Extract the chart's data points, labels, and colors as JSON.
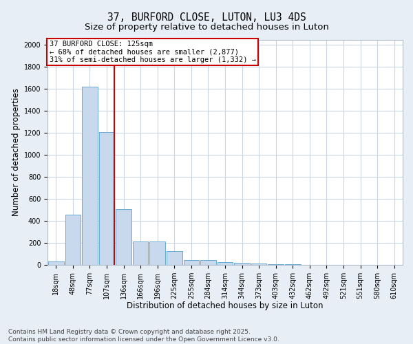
{
  "title": "37, BURFORD CLOSE, LUTON, LU3 4DS",
  "subtitle": "Size of property relative to detached houses in Luton",
  "xlabel": "Distribution of detached houses by size in Luton",
  "ylabel": "Number of detached properties",
  "categories": [
    "18sqm",
    "48sqm",
    "77sqm",
    "107sqm",
    "136sqm",
    "166sqm",
    "196sqm",
    "225sqm",
    "255sqm",
    "284sqm",
    "314sqm",
    "344sqm",
    "373sqm",
    "403sqm",
    "432sqm",
    "462sqm",
    "492sqm",
    "521sqm",
    "551sqm",
    "580sqm",
    "610sqm"
  ],
  "values": [
    30,
    460,
    1620,
    1210,
    510,
    215,
    215,
    125,
    45,
    45,
    25,
    20,
    10,
    5,
    5,
    3,
    2,
    2,
    1,
    1,
    1
  ],
  "bar_color": "#c8d9ee",
  "bar_edge_color": "#6aaad4",
  "vline_color": "#cc0000",
  "annotation_text": "37 BURFORD CLOSE: 125sqm\n← 68% of detached houses are smaller (2,877)\n31% of semi-detached houses are larger (1,332) →",
  "annotation_box_color": "#ffffff",
  "annotation_box_edge_color": "#cc0000",
  "ylim": [
    0,
    2050
  ],
  "yticks": [
    0,
    200,
    400,
    600,
    800,
    1000,
    1200,
    1400,
    1600,
    1800,
    2000
  ],
  "footer": "Contains HM Land Registry data © Crown copyright and database right 2025.\nContains public sector information licensed under the Open Government Licence v3.0.",
  "bg_color": "#e8eef5",
  "plot_bg_color": "#ffffff",
  "grid_color": "#c8d4e0",
  "title_fontsize": 10.5,
  "subtitle_fontsize": 9.5,
  "axis_fontsize": 8.5,
  "tick_fontsize": 7,
  "footer_fontsize": 6.5
}
